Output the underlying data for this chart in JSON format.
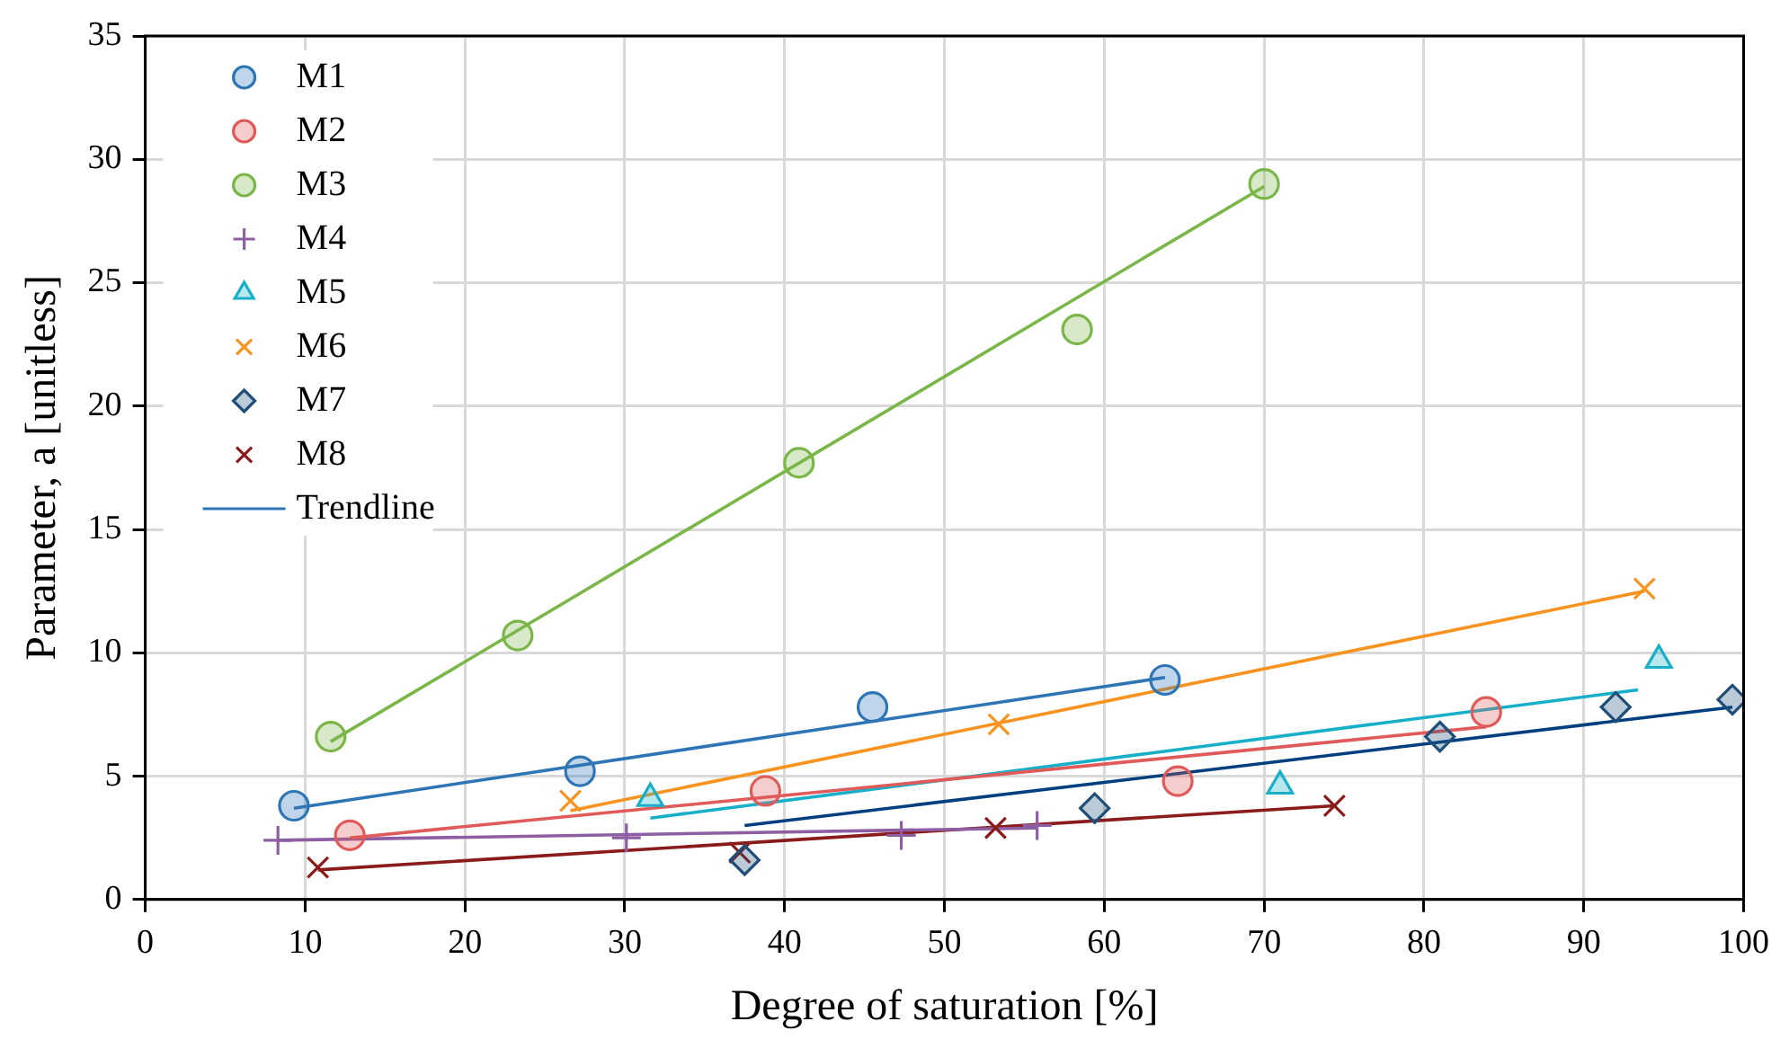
{
  "chart_data": {
    "type": "scatter",
    "xlabel": "Degree of saturation [%]",
    "ylabel": "Parameter, a [unitless]",
    "xlim": [
      0,
      100
    ],
    "xticks": [
      0,
      10,
      20,
      30,
      40,
      50,
      60,
      70,
      80,
      90,
      100
    ],
    "ylim": [
      0,
      35
    ],
    "yticks": [
      0,
      5,
      10,
      15,
      20,
      25,
      30,
      35
    ],
    "grid": true,
    "legend": "top left",
    "series": [
      {
        "name": "M1",
        "color": "#2e75b6",
        "marker": "circle",
        "x": [
          9.3,
          27.2,
          45.5,
          63.8
        ],
        "values": [
          3.8,
          5.2,
          7.8,
          8.9
        ]
      },
      {
        "name": "M2",
        "color": "#e05a5a",
        "marker": "circle",
        "x": [
          12.8,
          38.8,
          64.6,
          83.9
        ],
        "values": [
          2.6,
          4.4,
          4.8,
          7.6
        ]
      },
      {
        "name": "M3",
        "color": "#7ab648",
        "marker": "circle",
        "x": [
          11.6,
          23.3,
          40.9,
          58.3,
          70
        ],
        "values": [
          6.6,
          10.7,
          17.7,
          23.1,
          29
        ]
      },
      {
        "name": "M4",
        "color": "#8e5ea2",
        "marker": "plus",
        "x": [
          8.3,
          30.1,
          47.3,
          55.8
        ],
        "values": [
          2.4,
          2.5,
          2.6,
          3.0
        ]
      },
      {
        "name": "M5",
        "color": "#17b0c8",
        "marker": "triangle",
        "x": [
          31.6,
          71,
          94.7
        ],
        "values": [
          4.1,
          4.6,
          9.7
        ]
      },
      {
        "name": "M6",
        "color": "#f7931e",
        "marker": "cross",
        "x": [
          26.6,
          53.4,
          93.8
        ],
        "values": [
          4.0,
          7.1,
          12.6
        ]
      },
      {
        "name": "M7",
        "color": "#1f4e79",
        "marker": "diamond",
        "x": [
          37.5,
          59.4,
          81,
          92,
          99.3
        ],
        "values": [
          1.6,
          3.7,
          6.6,
          7.8,
          8.1
        ]
      },
      {
        "name": "M8",
        "color": "#8b1a1a",
        "marker": "cross",
        "x": [
          10.8,
          37.2,
          53.2,
          74.4
        ],
        "values": [
          1.3,
          1.9,
          2.9,
          3.8
        ]
      },
      {
        "name": "Trendline",
        "type": "line",
        "color": "#2e75b6",
        "marker": "none",
        "x": [
          9.3,
          63.8
        ],
        "values": [
          3.7,
          9.0
        ]
      },
      {
        "type": "line",
        "color": "#e05a5a",
        "marker": "none",
        "x": [
          12.8,
          83.9
        ],
        "values": [
          2.5,
          7.0
        ]
      },
      {
        "type": "line",
        "color": "#7ab648",
        "marker": "none",
        "x": [
          11.6,
          70
        ],
        "values": [
          6.4,
          28.9
        ]
      },
      {
        "type": "line",
        "color": "#8e5ea2",
        "marker": "none",
        "x": [
          8.3,
          55.8
        ],
        "values": [
          2.4,
          2.9
        ]
      },
      {
        "type": "line",
        "color": "#17b0c8",
        "marker": "none",
        "x": [
          31.6,
          93.4
        ],
        "values": [
          3.3,
          8.5
        ]
      },
      {
        "type": "line",
        "color": "#f7931e",
        "marker": "none",
        "x": [
          26.6,
          93.8
        ],
        "values": [
          3.6,
          12.5
        ]
      },
      {
        "type": "line",
        "color": "#003f7f",
        "marker": "none",
        "x": [
          37.5,
          99.3
        ],
        "values": [
          3.0,
          7.8
        ]
      },
      {
        "type": "line",
        "color": "#8b1a1a",
        "marker": "none",
        "x": [
          10.8,
          74.4
        ],
        "values": [
          1.2,
          3.8
        ]
      }
    ]
  }
}
